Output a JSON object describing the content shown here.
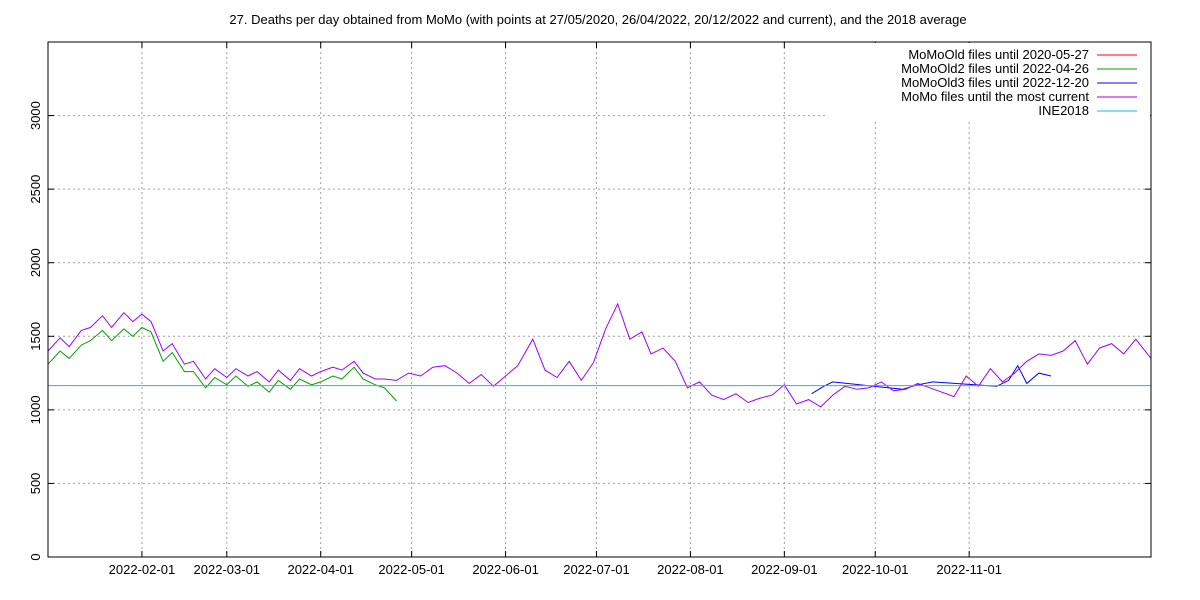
{
  "chart_data": {
    "type": "line",
    "title": "27. Deaths per day obtained from MoMo (with points at 27/05/2020, 26/04/2022, 20/12/2022 and current), and the 2018 average",
    "xlabel": "",
    "ylabel": "",
    "x_range": [
      "2022-01-01",
      "2022-12-31"
    ],
    "ylim": [
      0,
      3500
    ],
    "y_ticks": [
      0,
      500,
      1000,
      1500,
      2000,
      2500,
      3000
    ],
    "x_ticks": [
      "2022-02-01",
      "2022-03-01",
      "2022-04-01",
      "2022-05-01",
      "2022-06-01",
      "2022-07-01",
      "2022-08-01",
      "2022-09-01",
      "2022-10-01",
      "2022-11-01"
    ],
    "grid": true,
    "legend_position": "top-right",
    "series": [
      {
        "name": "MoMoOld files until 2020-05-27",
        "color": "#ff0000",
        "dates": [],
        "values": []
      },
      {
        "name": "MoMoOld2 files until 2022-04-26",
        "color": "#00a000",
        "dates": [
          "2022-01-01",
          "2022-01-05",
          "2022-01-08",
          "2022-01-12",
          "2022-01-15",
          "2022-01-19",
          "2022-01-22",
          "2022-01-26",
          "2022-01-29",
          "2022-02-01",
          "2022-02-04",
          "2022-02-08",
          "2022-02-11",
          "2022-02-15",
          "2022-02-18",
          "2022-02-22",
          "2022-02-25",
          "2022-03-01",
          "2022-03-04",
          "2022-03-08",
          "2022-03-11",
          "2022-03-15",
          "2022-03-18",
          "2022-03-22",
          "2022-03-25",
          "2022-03-29",
          "2022-04-01",
          "2022-04-05",
          "2022-04-08",
          "2022-04-12",
          "2022-04-15",
          "2022-04-19",
          "2022-04-22",
          "2022-04-26"
        ],
        "values": [
          1310,
          1400,
          1350,
          1440,
          1470,
          1540,
          1470,
          1550,
          1500,
          1560,
          1530,
          1330,
          1390,
          1260,
          1260,
          1150,
          1220,
          1170,
          1230,
          1160,
          1190,
          1120,
          1200,
          1140,
          1210,
          1170,
          1190,
          1230,
          1210,
          1290,
          1210,
          1170,
          1150,
          1060
        ]
      },
      {
        "name": "MoMoOld3 files until 2022-12-20",
        "color": "#0000ff",
        "dates": [
          "2022-09-10",
          "2022-09-14",
          "2022-09-17",
          "2022-10-10",
          "2022-10-15",
          "2022-10-20",
          "2022-11-10",
          "2022-11-14",
          "2022-11-17",
          "2022-11-20",
          "2022-11-24",
          "2022-11-28"
        ],
        "values": [
          1110,
          1160,
          1190,
          1140,
          1170,
          1190,
          1160,
          1200,
          1300,
          1180,
          1250,
          1230
        ]
      },
      {
        "name": "MoMo files until the most current",
        "color": "#a000ff",
        "dates": [
          "2022-01-01",
          "2022-01-05",
          "2022-01-08",
          "2022-01-12",
          "2022-01-15",
          "2022-01-19",
          "2022-01-22",
          "2022-01-26",
          "2022-01-29",
          "2022-02-01",
          "2022-02-04",
          "2022-02-08",
          "2022-02-11",
          "2022-02-15",
          "2022-02-18",
          "2022-02-22",
          "2022-02-25",
          "2022-03-01",
          "2022-03-04",
          "2022-03-08",
          "2022-03-11",
          "2022-03-15",
          "2022-03-18",
          "2022-03-22",
          "2022-03-25",
          "2022-03-29",
          "2022-04-01",
          "2022-04-05",
          "2022-04-08",
          "2022-04-12",
          "2022-04-15",
          "2022-04-19",
          "2022-04-22",
          "2022-04-26",
          "2022-04-30",
          "2022-05-04",
          "2022-05-08",
          "2022-05-12",
          "2022-05-16",
          "2022-05-20",
          "2022-05-24",
          "2022-05-28",
          "2022-06-01",
          "2022-06-05",
          "2022-06-10",
          "2022-06-14",
          "2022-06-18",
          "2022-06-22",
          "2022-06-26",
          "2022-06-30",
          "2022-07-04",
          "2022-07-08",
          "2022-07-12",
          "2022-07-16",
          "2022-07-19",
          "2022-07-23",
          "2022-07-27",
          "2022-07-31",
          "2022-08-04",
          "2022-08-08",
          "2022-08-12",
          "2022-08-16",
          "2022-08-20",
          "2022-08-24",
          "2022-08-28",
          "2022-09-01",
          "2022-09-05",
          "2022-09-09",
          "2022-09-13",
          "2022-09-17",
          "2022-09-21",
          "2022-09-25",
          "2022-09-29",
          "2022-10-03",
          "2022-10-07",
          "2022-10-11",
          "2022-10-15",
          "2022-10-19",
          "2022-10-23",
          "2022-10-27",
          "2022-10-31",
          "2022-11-04",
          "2022-11-08",
          "2022-11-12",
          "2022-11-16",
          "2022-11-20",
          "2022-11-24",
          "2022-11-28",
          "2022-12-02",
          "2022-12-06",
          "2022-12-10",
          "2022-12-14",
          "2022-12-18",
          "2022-12-22",
          "2022-12-26",
          "2022-12-31"
        ],
        "values": [
          1400,
          1490,
          1430,
          1540,
          1560,
          1640,
          1560,
          1660,
          1600,
          1650,
          1600,
          1400,
          1450,
          1310,
          1330,
          1210,
          1280,
          1220,
          1280,
          1230,
          1260,
          1190,
          1270,
          1200,
          1280,
          1230,
          1260,
          1290,
          1270,
          1330,
          1250,
          1210,
          1210,
          1200,
          1250,
          1230,
          1290,
          1300,
          1250,
          1180,
          1240,
          1160,
          1230,
          1300,
          1480,
          1270,
          1220,
          1330,
          1200,
          1320,
          1550,
          1720,
          1480,
          1530,
          1380,
          1420,
          1330,
          1150,
          1190,
          1100,
          1070,
          1110,
          1050,
          1080,
          1100,
          1170,
          1040,
          1070,
          1020,
          1100,
          1160,
          1140,
          1150,
          1190,
          1130,
          1140,
          1180,
          1150,
          1120,
          1090,
          1230,
          1160,
          1280,
          1190,
          1250,
          1330,
          1380,
          1370,
          1400,
          1470,
          1310,
          1420,
          1450,
          1380,
          1480,
          1350
        ]
      },
      {
        "name": "INE2018",
        "color": "#00c8e0",
        "dates": [
          "2022-01-01",
          "2022-12-31"
        ],
        "values": [
          1165,
          1165
        ]
      }
    ]
  }
}
